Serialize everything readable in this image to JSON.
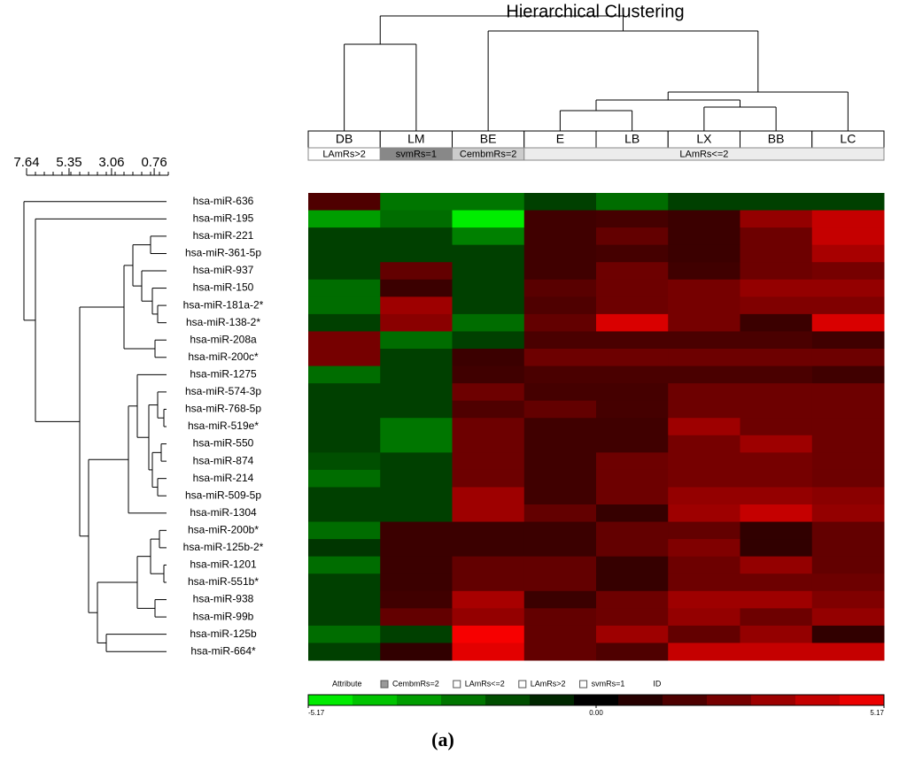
{
  "chart_data": {
    "type": "heatmap",
    "title": "Hierarchical Clustering",
    "columns": [
      "DB",
      "LM",
      "BE",
      "E",
      "LB",
      "LX",
      "BB",
      "LC"
    ],
    "attribute_groups": [
      {
        "label": "LAmRs>2",
        "span": 1,
        "color": "#ffffff"
      },
      {
        "label": "svmRs=1",
        "span": 1,
        "color": "#888888"
      },
      {
        "label": "CembmRs=2",
        "span": 1,
        "color": "#cccccc"
      },
      {
        "label": "LAmRs<=2",
        "span": 5,
        "color": "#ececec"
      }
    ],
    "rows": [
      "hsa-miR-636",
      "hsa-miR-195",
      "hsa-miR-221",
      "hsa-miR-361-5p",
      "hsa-miR-937",
      "hsa-miR-150",
      "hsa-miR-181a-2*",
      "hsa-miR-138-2*",
      "hsa-miR-208a",
      "hsa-miR-200c*",
      "hsa-miR-1275",
      "hsa-miR-574-3p",
      "hsa-miR-768-5p",
      "hsa-miR-519e*",
      "hsa-miR-550",
      "hsa-miR-874",
      "hsa-miR-214",
      "hsa-miR-509-5p",
      "hsa-miR-1304",
      "hsa-miR-200b*",
      "hsa-miR-125b-2*",
      "hsa-miR-1201",
      "hsa-miR-551b*",
      "hsa-miR-938",
      "hsa-miR-99b",
      "hsa-miR-125b",
      "hsa-miR-664*"
    ],
    "values": [
      [
        1.6,
        -2.4,
        -2.4,
        -1.3,
        -2.2,
        -1.3,
        -1.3,
        -1.3
      ],
      [
        -3.2,
        -2.2,
        -4.8,
        1.3,
        1.4,
        1.2,
        3.0,
        4.0
      ],
      [
        -1.3,
        -1.3,
        -2.6,
        1.3,
        2.0,
        1.2,
        2.2,
        4.0
      ],
      [
        -1.3,
        -1.3,
        -1.3,
        1.3,
        1.4,
        1.2,
        2.2,
        3.4
      ],
      [
        -1.3,
        2.0,
        -1.3,
        1.3,
        2.2,
        1.3,
        2.2,
        2.4
      ],
      [
        -2.2,
        1.2,
        -1.3,
        1.8,
        2.2,
        2.4,
        3.0,
        3.0
      ],
      [
        -2.2,
        3.2,
        -1.3,
        1.6,
        2.2,
        2.4,
        2.6,
        2.6
      ],
      [
        -1.3,
        2.8,
        -2.2,
        2.0,
        4.4,
        2.4,
        1.2,
        4.4
      ],
      [
        2.4,
        -2.2,
        -1.3,
        1.5,
        1.5,
        1.5,
        1.5,
        1.3
      ],
      [
        2.4,
        -1.3,
        1.2,
        2.2,
        2.2,
        2.2,
        2.2,
        2.2
      ],
      [
        -2.2,
        -1.3,
        1.3,
        1.5,
        1.5,
        1.5,
        1.5,
        1.3
      ],
      [
        -1.3,
        -1.3,
        2.2,
        1.4,
        1.4,
        2.2,
        2.2,
        2.2
      ],
      [
        -1.3,
        -1.3,
        1.6,
        2.0,
        1.4,
        2.2,
        2.2,
        2.2
      ],
      [
        -1.3,
        -2.4,
        2.2,
        1.3,
        1.3,
        3.2,
        2.2,
        2.2
      ],
      [
        -1.3,
        -2.4,
        2.2,
        1.3,
        1.3,
        2.4,
        3.2,
        2.2
      ],
      [
        -1.6,
        -1.3,
        2.2,
        1.3,
        2.2,
        2.4,
        2.4,
        2.2
      ],
      [
        -2.2,
        -1.3,
        2.2,
        1.3,
        2.2,
        2.4,
        2.4,
        2.2
      ],
      [
        -1.3,
        -1.3,
        3.2,
        1.3,
        2.2,
        3.0,
        3.0,
        2.8
      ],
      [
        -1.3,
        -1.3,
        3.2,
        2.0,
        1.1,
        3.2,
        4.0,
        3.0
      ],
      [
        -2.2,
        1.2,
        1.2,
        1.2,
        2.0,
        2.0,
        1.0,
        2.0
      ],
      [
        -1.1,
        1.2,
        1.2,
        1.2,
        2.0,
        2.6,
        1.0,
        2.0
      ],
      [
        -2.2,
        1.2,
        2.0,
        2.0,
        1.1,
        2.2,
        3.0,
        2.0
      ],
      [
        -1.3,
        1.2,
        2.0,
        2.0,
        1.1,
        2.2,
        2.2,
        2.2
      ],
      [
        -1.3,
        1.3,
        3.4,
        1.2,
        2.2,
        3.2,
        3.2,
        2.6
      ],
      [
        -1.3,
        2.0,
        3.0,
        2.0,
        2.2,
        3.0,
        2.2,
        3.0
      ],
      [
        -2.2,
        -1.3,
        5.0,
        2.0,
        3.2,
        2.0,
        3.0,
        1.0
      ],
      [
        -1.3,
        1.0,
        4.6,
        2.0,
        1.6,
        4.0,
        4.0,
        4.0
      ]
    ],
    "zlim": [
      -5.17,
      5.17
    ],
    "zticks": [
      -5.17,
      {
        "value": 0,
        "label": "0.00"
      },
      5.17
    ],
    "dendrogram_scale": {
      "xlim": [
        7.64,
        0
      ],
      "xticks": [
        7.64,
        5.35,
        3.06,
        0.76
      ]
    },
    "legend": {
      "title": "Attribute",
      "items": [
        {
          "label": "CembmRs=2",
          "color": "#999999"
        },
        {
          "label": "LAmRs<=2",
          "color": "#ffffff"
        },
        {
          "label": "LAmRs>2",
          "color": "#ffffff"
        },
        {
          "label": "svmRs=1",
          "color": "#ffffff"
        },
        {
          "label": "ID"
        }
      ]
    },
    "caption": "(a)"
  }
}
